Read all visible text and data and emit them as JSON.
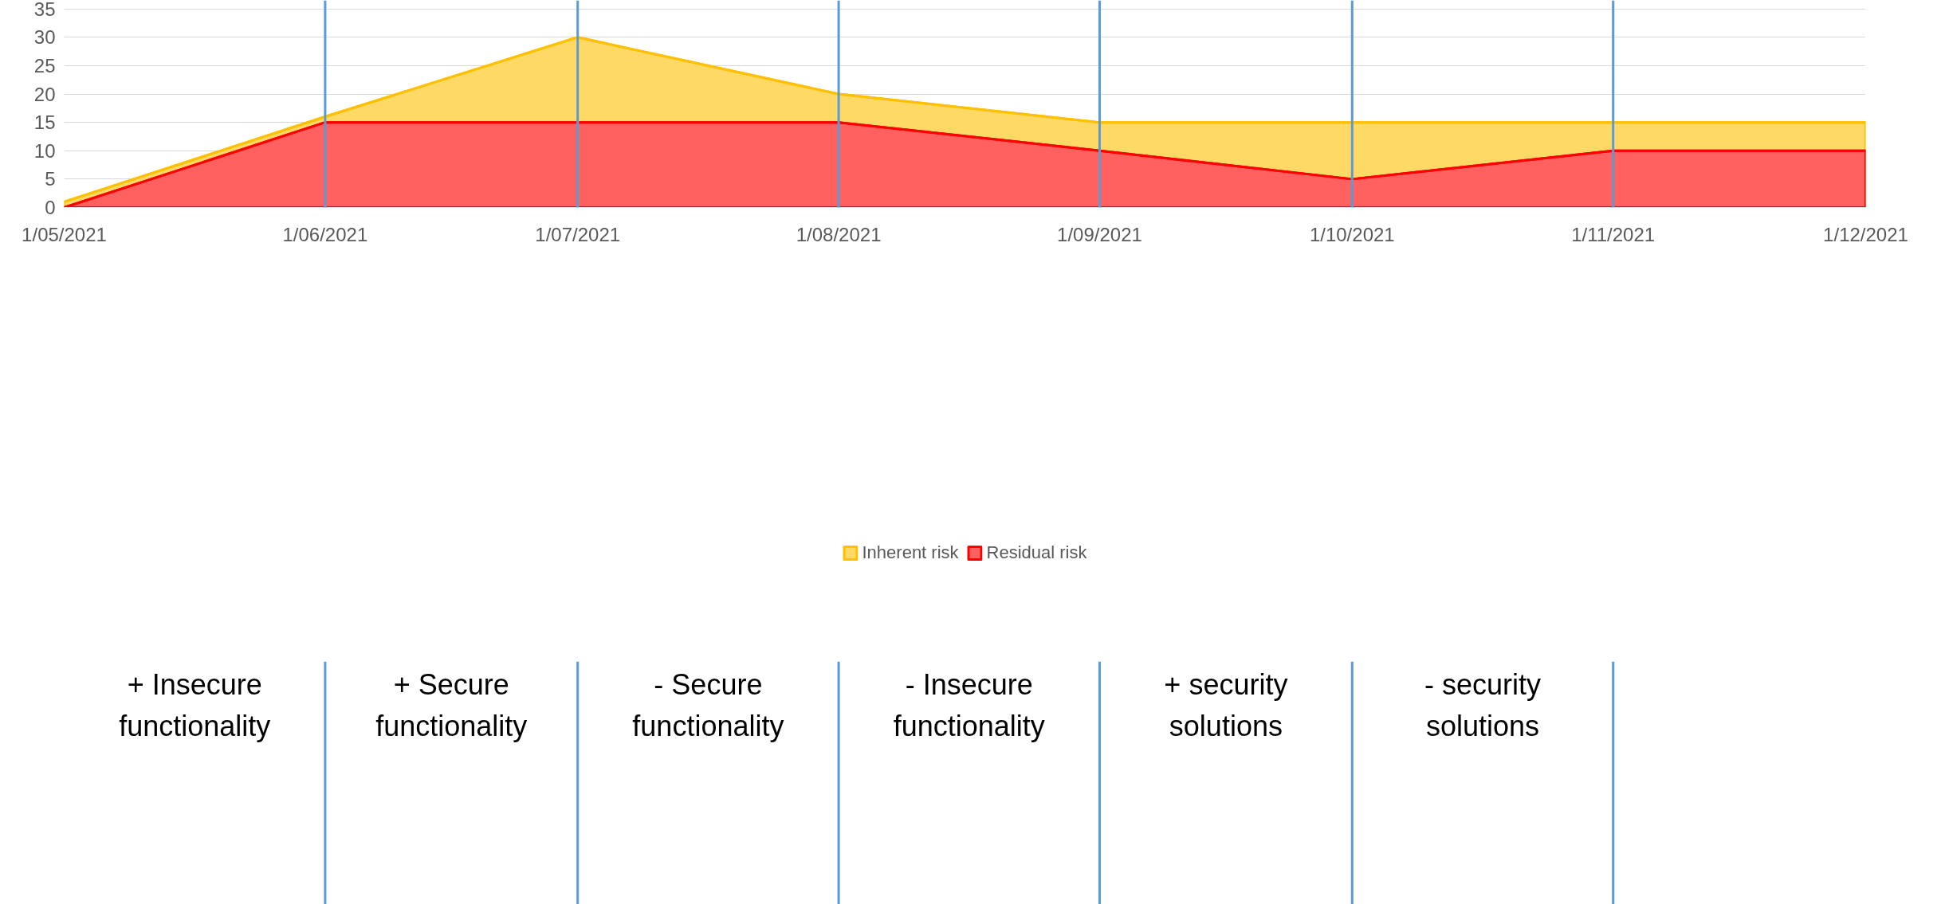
{
  "chart_data": {
    "type": "area",
    "x": [
      "2021-05-01",
      "2021-06-01",
      "2021-07-01",
      "2021-08-01",
      "2021-09-01",
      "2021-10-01",
      "2021-11-01",
      "2021-12-01"
    ],
    "series": [
      {
        "name": "Inherent risk",
        "color": "#ffd966",
        "values": [
          1,
          16,
          30,
          20,
          15,
          15,
          15,
          15
        ]
      },
      {
        "name": "Residual risk",
        "color": "#ff6161",
        "values": [
          0,
          15,
          15,
          15,
          10,
          5,
          10,
          10
        ]
      }
    ],
    "xlim": [
      "2021-05-01",
      "2021-12-01"
    ],
    "xticks": [
      {
        "value": "2021-05-01",
        "label": "1/05/2021"
      },
      {
        "value": "2021-06-01",
        "label": "1/06/2021"
      },
      {
        "value": "2021-07-01",
        "label": "1/07/2021"
      },
      {
        "value": "2021-08-01",
        "label": "1/08/2021"
      },
      {
        "value": "2021-09-01",
        "label": "1/09/2021"
      },
      {
        "value": "2021-10-01",
        "label": "1/10/2021"
      },
      {
        "value": "2021-11-01",
        "label": "1/11/2021"
      },
      {
        "value": "2021-12-01",
        "label": "1/12/2021"
      }
    ],
    "ylim": [
      0,
      36.5
    ],
    "yticks": [
      0,
      5,
      10,
      15,
      20,
      25,
      30,
      35
    ],
    "grid": "y",
    "legend": "bottom",
    "ref_lines": [
      {
        "axis": "x",
        "value": "2021-06-01",
        "label": null,
        "color": "#5b9bd5"
      },
      {
        "axis": "x",
        "value": "2021-07-01",
        "label": null,
        "color": "#5b9bd5"
      },
      {
        "axis": "x",
        "value": "2021-08-01",
        "label": null,
        "color": "#5b9bd5"
      },
      {
        "axis": "x",
        "value": "2021-09-01",
        "label": null,
        "color": "#5b9bd5"
      },
      {
        "axis": "x",
        "value": "2021-10-01",
        "label": null,
        "color": "#5b9bd5"
      },
      {
        "axis": "x",
        "value": "2021-11-01",
        "label": null,
        "color": "#5b9bd5"
      }
    ],
    "annotations": [
      "+ Insecure functionality",
      "+ Secure functionality",
      "- Secure functionality",
      "- Insecure functionality",
      "+ security solutions",
      "- security solutions"
    ]
  }
}
